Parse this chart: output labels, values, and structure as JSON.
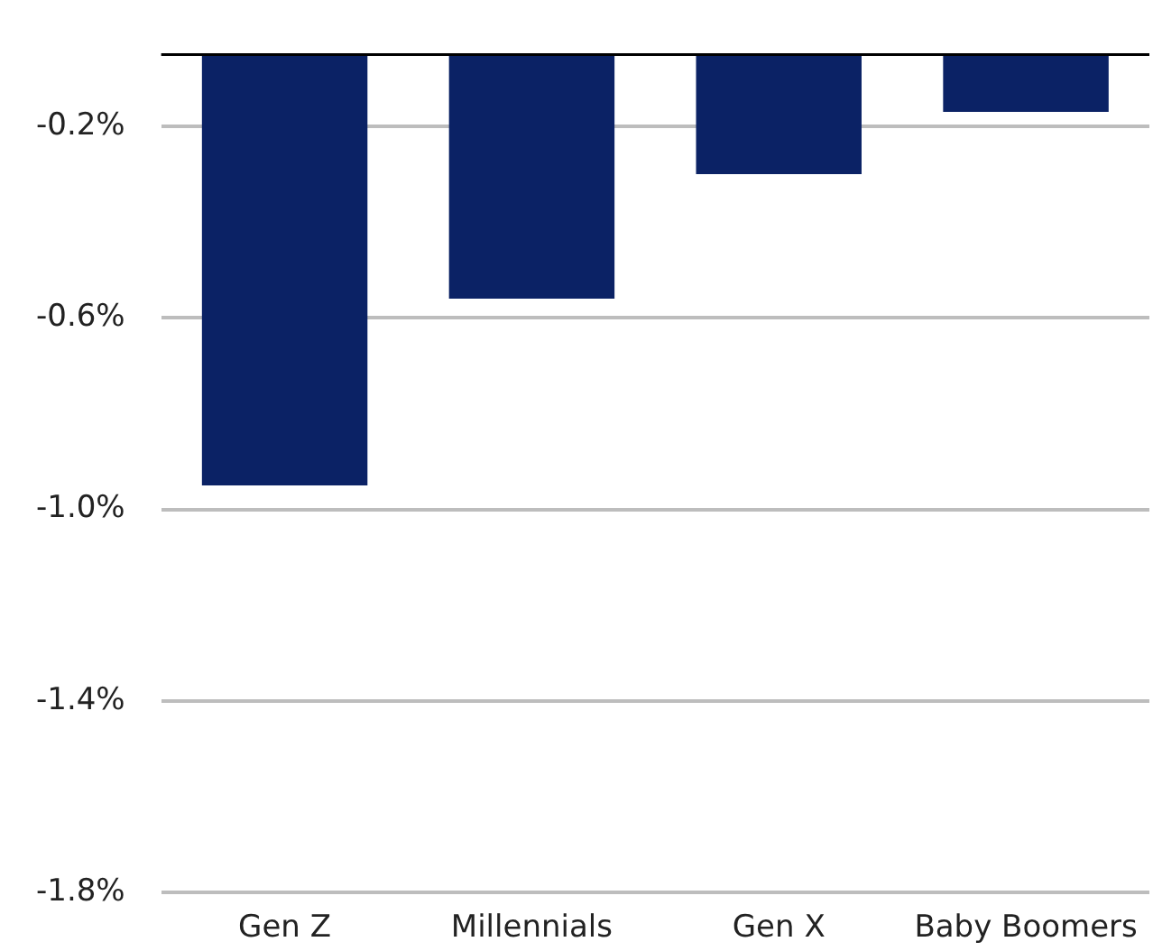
{
  "chart_data": {
    "type": "bar",
    "categories": [
      "Gen Z",
      "Millennials",
      "Gen X",
      "Baby Boomers"
    ],
    "values": [
      -0.9,
      -0.51,
      -0.25,
      -0.12
    ],
    "color": "#0b2265",
    "ylim": [
      -1.75,
      0
    ],
    "yticks": [
      {
        "value": -1.75,
        "label": "-1.8%"
      },
      {
        "value": -1.35,
        "label": "-1.4%"
      },
      {
        "value": -0.95,
        "label": "-1.0%"
      },
      {
        "value": -0.55,
        "label": "-0.6%"
      },
      {
        "value": -0.15,
        "label": "-0.2%"
      }
    ],
    "grid": "y",
    "legend": false
  }
}
